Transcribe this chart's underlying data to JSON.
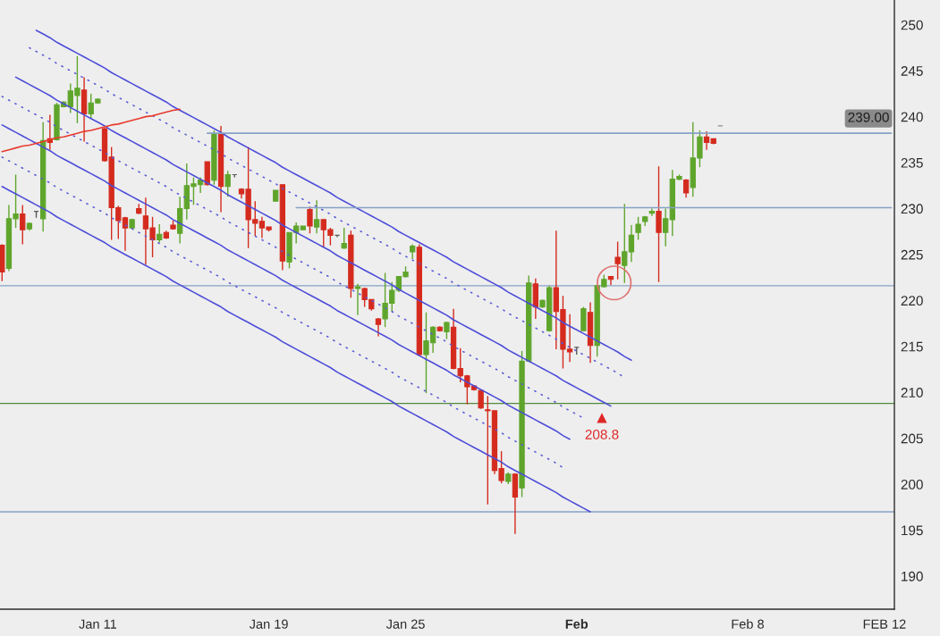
{
  "chart_data": {
    "type": "candlestick",
    "categories": [
      null,
      null,
      null,
      null,
      null,
      null,
      null,
      null,
      null,
      null,
      null,
      null,
      null,
      null,
      "Jan 11",
      null,
      null,
      null,
      null,
      null,
      null,
      null,
      null,
      null,
      null,
      null,
      null,
      null,
      null,
      null,
      null,
      null,
      null,
      null,
      null,
      null,
      null,
      null,
      null,
      "Jan 19",
      null,
      null,
      null,
      null,
      null,
      null,
      null,
      null,
      null,
      null,
      null,
      null,
      null,
      null,
      null,
      null,
      null,
      null,
      null,
      "Jan 25",
      null,
      null,
      null,
      null,
      null,
      null,
      null,
      null,
      null,
      null,
      null,
      null,
      null,
      null,
      null,
      null,
      null,
      null,
      null,
      null,
      null,
      null,
      null,
      null,
      "Feb",
      null,
      null,
      null,
      null,
      null,
      null,
      null,
      null,
      null,
      null,
      null,
      null,
      null,
      null,
      null,
      null,
      null,
      null,
      null,
      null,
      null,
      null,
      null,
      null,
      "Feb 8",
      null,
      null,
      null,
      null,
      null,
      null,
      null,
      null,
      null,
      null,
      null,
      null,
      null,
      null,
      null,
      null,
      null,
      null,
      null,
      "FEB 12",
      null
    ],
    "ohlc": [
      [
        226.0,
        226.1,
        222.1,
        223.1
      ],
      [
        223.5,
        230.4,
        223.2,
        228.9
      ],
      [
        228.9,
        233.7,
        227.9,
        229.4
      ],
      [
        229.4,
        230.4,
        226.1,
        227.7
      ],
      [
        227.8,
        228.5,
        227.6,
        228.4
      ],
      [
        229.7,
        229.7,
        229.0,
        229.7
      ],
      [
        228.9,
        239.4,
        227.5,
        237.4
      ],
      [
        237.6,
        240.2,
        236.4,
        237.2
      ],
      [
        237.5,
        241.5,
        237.4,
        241.3
      ],
      [
        241.1,
        241.7,
        241.0,
        241.6
      ],
      [
        241.1,
        243.6,
        240.4,
        242.8
      ],
      [
        242.3,
        246.6,
        239.3,
        243.1
      ],
      [
        242.9,
        244.3,
        237.3,
        240.3
      ],
      [
        240.3,
        242.5,
        239.8,
        241.5
      ],
      [
        241.5,
        242.0,
        241.4,
        241.9
      ],
      [
        238.7,
        238.8,
        235.1,
        235.2
      ],
      [
        235.6,
        236.7,
        226.6,
        230.1
      ],
      [
        230.1,
        230.3,
        226.7,
        228.7
      ],
      [
        229.0,
        229.1,
        225.4,
        227.9
      ],
      [
        227.9,
        228.9,
        227.8,
        228.8
      ],
      [
        230.0,
        230.5,
        229.4,
        229.5
      ],
      [
        229.2,
        231.2,
        223.9,
        227.8
      ],
      [
        227.9,
        229.1,
        224.7,
        226.6
      ],
      [
        226.6,
        228.3,
        226.3,
        227.2
      ],
      [
        227.4,
        227.6,
        226.7,
        226.8
      ],
      [
        228.2,
        228.7,
        227.7,
        227.8
      ],
      [
        227.3,
        231.3,
        226.2,
        230.0
      ],
      [
        230.0,
        234.9,
        228.8,
        232.5
      ],
      [
        232.4,
        233.4,
        230.4,
        232.7
      ],
      [
        232.6,
        233.4,
        231.7,
        233.1
      ],
      [
        235.1,
        235.1,
        232.5,
        232.6
      ],
      [
        233.1,
        238.5,
        232.6,
        238.1
      ],
      [
        238.1,
        239.0,
        229.6,
        232.4
      ],
      [
        232.4,
        234.1,
        231.3,
        233.7
      ],
      [
        233.7,
        233.7,
        233.4,
        233.7
      ],
      [
        232.1,
        232.2,
        231.1,
        231.6
      ],
      [
        232.1,
        236.7,
        225.7,
        228.8
      ],
      [
        228.8,
        230.8,
        227.0,
        228.4
      ],
      [
        228.6,
        229.1,
        226.8,
        227.9
      ],
      [
        228.0,
        228.0,
        227.5,
        227.7
      ],
      [
        230.8,
        232.0,
        230.8,
        232.0
      ],
      [
        232.6,
        232.6,
        223.3,
        224.3
      ],
      [
        224.2,
        227.4,
        223.5,
        227.4
      ],
      [
        227.4,
        228.5,
        226.2,
        228.1
      ],
      [
        227.7,
        228.1,
        227.7,
        228.1
      ],
      [
        229.9,
        230.2,
        227.3,
        228.1
      ],
      [
        228.0,
        230.9,
        227.3,
        228.8
      ],
      [
        228.8,
        228.8,
        225.8,
        227.7
      ],
      [
        227.7,
        227.9,
        226.0,
        227.1
      ],
      [
        227.1,
        227.1,
        226.9,
        227.1
      ],
      [
        225.7,
        227.9,
        225.6,
        226.2
      ],
      [
        227.1,
        227.6,
        220.3,
        221.3
      ],
      [
        221.3,
        221.8,
        218.4,
        221.5
      ],
      [
        221.3,
        221.4,
        219.3,
        220.1
      ],
      [
        220.1,
        220.1,
        218.9,
        219.1
      ],
      [
        218.0,
        218.1,
        216.1,
        217.4
      ],
      [
        218.0,
        223.0,
        217.1,
        219.7
      ],
      [
        219.7,
        222.0,
        218.8,
        221.1
      ],
      [
        221.1,
        222.6,
        220.9,
        222.6
      ],
      [
        222.6,
        223.7,
        222.5,
        223.1
      ],
      [
        225.3,
        226.1,
        224.5,
        225.9
      ],
      [
        225.8,
        226.1,
        213.9,
        214.1
      ],
      [
        214.1,
        218.7,
        209.9,
        215.6
      ],
      [
        215.4,
        217.2,
        214.3,
        217.1
      ],
      [
        217.1,
        217.2,
        216.6,
        216.7
      ],
      [
        216.6,
        217.7,
        215.8,
        217.6
      ],
      [
        217.1,
        219.1,
        212.5,
        212.6
      ],
      [
        212.6,
        214.8,
        211.1,
        211.8
      ],
      [
        211.8,
        211.9,
        208.7,
        210.6
      ],
      [
        210.7,
        210.8,
        210.2,
        210.3
      ],
      [
        210.2,
        210.3,
        208.2,
        208.3
      ],
      [
        208.1,
        209.6,
        197.8,
        208.0
      ],
      [
        208.0,
        208.0,
        201.1,
        201.5
      ],
      [
        201.7,
        203.6,
        200.1,
        200.4
      ],
      [
        200.3,
        201.3,
        200.0,
        201.1
      ],
      [
        201.1,
        201.2,
        194.6,
        198.6
      ],
      [
        199.6,
        214.5,
        198.6,
        213.4
      ],
      [
        213.4,
        222.7,
        213.3,
        221.9
      ],
      [
        221.8,
        222.4,
        218.0,
        219.3
      ],
      [
        219.3,
        220.1,
        219.2,
        220.0
      ],
      [
        216.7,
        221.6,
        216.6,
        221.4
      ],
      [
        221.4,
        227.6,
        214.7,
        218.8
      ],
      [
        219.0,
        220.5,
        212.6,
        214.7
      ],
      [
        214.7,
        218.5,
        213.3,
        214.4
      ],
      [
        214.9,
        214.9,
        214.1,
        214.9
      ],
      [
        216.7,
        219.3,
        216.7,
        219.1
      ],
      [
        218.7,
        219.8,
        213.2,
        215.1
      ],
      [
        215.1,
        221.7,
        213.9,
        221.6
      ],
      [
        221.5,
        222.8,
        221.4,
        222.3
      ],
      [
        222.6,
        222.6,
        221.7,
        222.3
      ],
      [
        224.7,
        226.4,
        222.3,
        224.0
      ],
      [
        223.8,
        230.5,
        221.9,
        225.3
      ],
      [
        225.3,
        228.2,
        224.2,
        227.1
      ],
      [
        227.4,
        229.1,
        226.6,
        228.3
      ],
      [
        228.6,
        229.2,
        228.1,
        229.1
      ],
      [
        229.5,
        230.0,
        229.2,
        229.7
      ],
      [
        229.7,
        234.6,
        222.0,
        227.4
      ],
      [
        227.4,
        230.0,
        225.9,
        228.9
      ],
      [
        228.8,
        234.2,
        227.0,
        233.2
      ],
      [
        233.2,
        233.7,
        233.1,
        233.5
      ],
      [
        233.1,
        233.2,
        231.2,
        231.7
      ],
      [
        232.3,
        239.4,
        231.3,
        235.5
      ],
      [
        235.5,
        238.5,
        234.5,
        237.8
      ],
      [
        237.8,
        238.4,
        236.4,
        237.2
      ],
      [
        237.6,
        237.6,
        237.0,
        237.1
      ],
      [
        239.0,
        239.0,
        239.0,
        239.0
      ],
      null,
      null,
      null,
      null,
      null,
      null,
      null,
      null,
      null,
      null,
      null,
      null,
      null,
      null,
      null,
      null,
      null,
      null,
      null,
      null,
      null,
      null,
      null,
      null,
      null
    ],
    "colors": [
      "#d42b1e",
      "#5fa52c",
      "#5fa52c",
      "#d42b1e",
      "#5fa52c",
      "#5a5a5a",
      "#5fa52c",
      "#d42b1e",
      "#5fa52c",
      "#5fa52c",
      "#5fa52c",
      "#5fa52c",
      "#d42b1e",
      "#5fa52c",
      "#5fa52c",
      "#d42b1e",
      "#d42b1e",
      "#d42b1e",
      "#d42b1e",
      "#5fa52c",
      "#d42b1e",
      "#d42b1e",
      "#d42b1e",
      "#5fa52c",
      "#d42b1e",
      "#d42b1e",
      "#5fa52c",
      "#5fa52c",
      "#5fa52c",
      "#5fa52c",
      "#d42b1e",
      "#5fa52c",
      "#d42b1e",
      "#5fa52c",
      "#5a5a5a",
      "#d42b1e",
      "#d42b1e",
      "#d42b1e",
      "#d42b1e",
      "#d42b1e",
      "#5fa52c",
      "#d42b1e",
      "#5fa52c",
      "#5fa52c",
      "#5fa52c",
      "#d42b1e",
      "#5fa52c",
      "#d42b1e",
      "#d42b1e",
      "#5a5a5a",
      "#5fa52c",
      "#d42b1e",
      "#5fa52c",
      "#d42b1e",
      "#d42b1e",
      "#d42b1e",
      "#5fa52c",
      "#5fa52c",
      "#5fa52c",
      "#5fa52c",
      "#5fa52c",
      "#d42b1e",
      "#5fa52c",
      "#5fa52c",
      "#d42b1e",
      "#5fa52c",
      "#d42b1e",
      "#d42b1e",
      "#d42b1e",
      "#d42b1e",
      "#d42b1e",
      "#d42b1e",
      "#d42b1e",
      "#d42b1e",
      "#5fa52c",
      "#d42b1e",
      "#5fa52c",
      "#5fa52c",
      "#d42b1e",
      "#5fa52c",
      "#5fa52c",
      "#d42b1e",
      "#d42b1e",
      "#d42b1e",
      "#5a5a5a",
      "#5fa52c",
      "#d42b1e",
      "#5fa52c",
      "#5fa52c",
      "#d42b1e",
      "#d42b1e",
      "#5fa52c",
      "#5fa52c",
      "#5fa52c",
      "#5fa52c",
      "#5fa52c",
      "#d42b1e",
      "#5fa52c",
      "#5fa52c",
      "#5fa52c",
      "#d42b1e",
      "#5fa52c",
      "#5fa52c",
      "#d42b1e",
      "#d42b1e",
      "#8c8c8c",
      null,
      null,
      null,
      null,
      null,
      null,
      null,
      null,
      null,
      null,
      null,
      null,
      null,
      null,
      null,
      null,
      null,
      null,
      null,
      null,
      null,
      null,
      null,
      null,
      null
    ],
    "ylim": [
      186.4,
      252.7
    ],
    "yticks": [
      190,
      195,
      200,
      205,
      210,
      215,
      220,
      225,
      230,
      235,
      240,
      245,
      250
    ],
    "series": [
      {
        "type": "line",
        "color": "#4d4dd9",
        "line_style": "solid",
        "values": [
          null,
          null,
          null,
          null,
          null,
          249.4,
          249.0,
          248.6,
          248.1,
          247.7,
          247.3,
          246.9,
          246.5,
          246.1,
          245.7,
          245.3,
          244.8,
          244.4,
          244.0,
          243.6,
          243.2,
          242.8,
          242.4,
          242.0,
          241.6,
          241.1,
          240.7,
          240.3,
          239.9,
          239.5,
          239.1,
          238.7,
          238.3,
          237.8,
          237.4,
          237.0,
          236.6,
          236.2,
          235.8,
          235.4,
          235.0,
          234.5,
          234.1,
          233.7,
          233.3,
          232.9,
          232.5,
          232.1,
          231.7,
          231.2,
          230.8,
          230.4,
          230.0,
          229.6,
          229.2,
          228.8,
          228.4,
          228.0,
          227.5,
          227.1,
          226.7,
          226.3,
          225.9,
          225.5,
          225.1,
          224.7,
          224.2,
          223.8,
          223.4,
          223.0,
          222.6,
          222.2,
          221.8,
          221.4,
          220.9,
          220.5,
          220.1,
          219.7,
          219.3,
          218.9,
          218.5,
          218.1,
          217.6,
          217.2,
          216.8,
          216.4,
          216.0,
          215.6,
          215.2,
          214.8,
          214.4,
          213.9,
          213.5,
          null,
          null,
          null,
          null,
          null,
          null,
          null,
          null,
          null,
          null,
          null,
          null,
          null,
          null,
          null,
          null,
          null,
          null,
          null,
          null,
          null,
          null,
          null,
          null,
          null,
          null,
          null,
          null,
          null,
          null,
          null,
          null,
          null,
          null,
          null,
          null,
          null,
          null
        ]
      },
      {
        "type": "line",
        "color": "#5a5ad6",
        "line_style": "dotted",
        "values": [
          null,
          null,
          null,
          null,
          247.5,
          247.1,
          246.7,
          246.3,
          245.8,
          245.4,
          245.0,
          244.6,
          244.2,
          243.8,
          243.4,
          243.0,
          242.5,
          242.1,
          241.7,
          241.3,
          240.9,
          240.5,
          240.1,
          239.7,
          239.3,
          238.8,
          238.4,
          238.0,
          237.6,
          237.2,
          236.8,
          236.4,
          236.0,
          235.5,
          235.1,
          234.7,
          234.3,
          233.9,
          233.5,
          233.1,
          232.7,
          232.2,
          231.8,
          231.4,
          231.0,
          230.6,
          230.2,
          229.8,
          229.4,
          228.9,
          228.5,
          228.1,
          227.7,
          227.3,
          226.9,
          226.5,
          226.1,
          225.7,
          225.2,
          224.8,
          224.4,
          224.0,
          223.6,
          223.2,
          222.8,
          222.4,
          221.9,
          221.5,
          221.1,
          220.7,
          220.3,
          219.9,
          219.5,
          219.1,
          218.6,
          218.2,
          217.8,
          217.4,
          217.0,
          216.6,
          216.2,
          215.8,
          215.3,
          214.9,
          214.5,
          214.1,
          213.7,
          213.3,
          212.9,
          212.5,
          212.1,
          211.6,
          null,
          null,
          null,
          null,
          null,
          null,
          null,
          null,
          null,
          null,
          null,
          null,
          null,
          null,
          null,
          null,
          null,
          null,
          null,
          null,
          null,
          null,
          null,
          null,
          null,
          null,
          null,
          null,
          null,
          null,
          null,
          null,
          null,
          null,
          null,
          null,
          null,
          null,
          null
        ]
      },
      {
        "type": "line",
        "color": "#4d4dd9",
        "line_style": "solid",
        "values": [
          null,
          null,
          244.3,
          243.9,
          243.5,
          243.1,
          242.7,
          242.3,
          241.8,
          241.4,
          241.0,
          240.6,
          240.2,
          239.8,
          239.4,
          239.0,
          238.5,
          238.1,
          237.7,
          237.3,
          236.9,
          236.5,
          236.1,
          235.7,
          235.3,
          234.8,
          234.4,
          234.0,
          233.6,
          233.2,
          232.8,
          232.4,
          232.0,
          231.5,
          231.1,
          230.7,
          230.3,
          229.9,
          229.5,
          229.1,
          228.7,
          228.2,
          227.8,
          227.4,
          227.0,
          226.6,
          226.2,
          225.8,
          225.4,
          224.9,
          224.5,
          224.1,
          223.7,
          223.3,
          222.9,
          222.5,
          222.1,
          221.7,
          221.2,
          220.8,
          220.4,
          220.0,
          219.6,
          219.2,
          218.8,
          218.4,
          217.9,
          217.5,
          217.1,
          216.7,
          216.3,
          215.9,
          215.5,
          215.1,
          214.6,
          214.2,
          213.8,
          213.4,
          213.0,
          212.6,
          212.2,
          211.8,
          211.3,
          210.9,
          210.5,
          210.1,
          209.7,
          209.3,
          208.9,
          208.5,
          null,
          null,
          null,
          null,
          null,
          null,
          null,
          null,
          null,
          null,
          null,
          null,
          null,
          null,
          null,
          null,
          null,
          null,
          null,
          null,
          null,
          null,
          null,
          null,
          null,
          null,
          null,
          null,
          null,
          null,
          null,
          null,
          null,
          null,
          null,
          null,
          null,
          null,
          null,
          null,
          null
        ]
      },
      {
        "type": "line",
        "color": "#5a5ad6",
        "line_style": "dotted",
        "values": [
          242.2,
          241.8,
          241.4,
          241.0,
          240.6,
          240.2,
          239.8,
          239.4,
          238.9,
          238.5,
          238.1,
          237.7,
          237.3,
          236.9,
          236.5,
          236.1,
          235.6,
          235.2,
          234.8,
          234.4,
          234.0,
          233.6,
          233.2,
          232.8,
          232.4,
          231.9,
          231.5,
          231.1,
          230.7,
          230.3,
          229.9,
          229.5,
          229.1,
          228.6,
          228.2,
          227.8,
          227.4,
          227.0,
          226.6,
          226.2,
          225.8,
          225.3,
          224.9,
          224.5,
          224.1,
          223.7,
          223.3,
          222.9,
          222.5,
          222.0,
          221.6,
          221.2,
          220.8,
          220.4,
          220.0,
          219.6,
          219.2,
          218.8,
          218.3,
          217.9,
          217.5,
          217.1,
          216.7,
          216.3,
          215.9,
          215.5,
          215.0,
          214.6,
          214.2,
          213.8,
          213.4,
          213.0,
          212.6,
          212.2,
          211.7,
          211.3,
          210.9,
          210.5,
          210.1,
          209.7,
          209.3,
          208.9,
          208.4,
          208.0,
          207.6,
          207.2,
          null,
          null,
          null,
          null,
          null,
          null,
          null,
          null,
          null,
          null,
          null,
          null,
          null,
          null,
          null,
          null,
          null,
          null,
          null,
          null,
          null,
          null,
          null,
          null,
          null,
          null,
          null,
          null,
          null,
          null,
          null,
          null,
          null,
          null,
          null,
          null,
          null,
          null,
          null,
          null,
          null,
          null,
          null,
          null,
          null
        ]
      },
      {
        "type": "line",
        "color": "#4d4dd9",
        "line_style": "solid",
        "values": [
          239.1,
          238.7,
          238.3,
          237.9,
          237.5,
          237.1,
          236.7,
          236.3,
          235.8,
          235.4,
          235.0,
          234.6,
          234.2,
          233.8,
          233.4,
          233.0,
          232.5,
          232.1,
          231.7,
          231.3,
          230.9,
          230.5,
          230.1,
          229.7,
          229.3,
          228.8,
          228.4,
          228.0,
          227.6,
          227.2,
          226.8,
          226.4,
          226.0,
          225.5,
          225.1,
          224.7,
          224.3,
          223.9,
          223.5,
          223.1,
          222.7,
          222.2,
          221.8,
          221.4,
          221.0,
          220.6,
          220.2,
          219.8,
          219.4,
          218.9,
          218.5,
          218.1,
          217.7,
          217.3,
          216.9,
          216.5,
          216.1,
          215.7,
          215.2,
          214.8,
          214.4,
          214.0,
          213.6,
          213.2,
          212.8,
          212.4,
          211.9,
          211.5,
          211.1,
          210.7,
          210.3,
          209.9,
          209.5,
          209.1,
          208.6,
          208.2,
          207.8,
          207.4,
          207.0,
          206.6,
          206.2,
          205.8,
          205.3,
          204.9,
          null,
          null,
          null,
          null,
          null,
          null,
          null,
          null,
          null,
          null,
          null,
          null,
          null,
          null,
          null,
          null,
          null,
          null,
          null,
          null,
          null,
          null,
          null,
          null,
          null,
          null,
          null,
          null,
          null,
          null,
          null,
          null,
          null,
          null,
          null,
          null,
          null,
          null,
          null,
          null,
          null,
          null,
          null,
          null,
          null,
          null,
          null
        ]
      },
      {
        "type": "line",
        "color": "#5a5ad6",
        "line_style": "dotted",
        "values": [
          235.6,
          235.2,
          234.8,
          234.4,
          234.0,
          233.6,
          233.2,
          232.8,
          232.3,
          231.9,
          231.5,
          231.1,
          230.7,
          230.3,
          229.9,
          229.5,
          229.0,
          228.6,
          228.2,
          227.8,
          227.4,
          227.0,
          226.6,
          226.2,
          225.8,
          225.3,
          224.9,
          224.5,
          224.1,
          223.7,
          223.3,
          222.9,
          222.5,
          222.0,
          221.6,
          221.2,
          220.8,
          220.4,
          220.0,
          219.6,
          219.2,
          218.7,
          218.3,
          217.9,
          217.5,
          217.1,
          216.7,
          216.3,
          215.9,
          215.4,
          215.0,
          214.6,
          214.2,
          213.8,
          213.4,
          213.0,
          212.6,
          212.2,
          211.7,
          211.3,
          210.9,
          210.5,
          210.1,
          209.7,
          209.3,
          208.9,
          208.4,
          208.0,
          207.6,
          207.2,
          206.8,
          206.4,
          206.0,
          205.6,
          205.1,
          204.7,
          204.3,
          203.9,
          203.5,
          203.1,
          202.7,
          202.3,
          201.8,
          null,
          null,
          null,
          null,
          null,
          null,
          null,
          null,
          null,
          null,
          null,
          null,
          null,
          null,
          null,
          null,
          null,
          null,
          null,
          null,
          null,
          null,
          null,
          null,
          null,
          null,
          null,
          null,
          null,
          null,
          null,
          null,
          null,
          null,
          null,
          null,
          null,
          null,
          null,
          null,
          null,
          null,
          null,
          null,
          null,
          null,
          null,
          null
        ]
      },
      {
        "type": "line",
        "color": "#4d4dd9",
        "line_style": "solid",
        "values": [
          232.4,
          232.0,
          231.6,
          231.2,
          230.8,
          230.4,
          230.0,
          229.6,
          229.1,
          228.7,
          228.3,
          227.9,
          227.5,
          227.1,
          226.7,
          226.3,
          225.8,
          225.4,
          225.0,
          224.6,
          224.2,
          223.8,
          223.4,
          223.0,
          222.6,
          222.1,
          221.7,
          221.3,
          220.9,
          220.5,
          220.1,
          219.7,
          219.3,
          218.8,
          218.4,
          218.0,
          217.6,
          217.2,
          216.8,
          216.4,
          216.0,
          215.5,
          215.1,
          214.7,
          214.3,
          213.9,
          213.5,
          213.1,
          212.7,
          212.2,
          211.8,
          211.4,
          211.0,
          210.6,
          210.2,
          209.8,
          209.4,
          209.0,
          208.5,
          208.1,
          207.7,
          207.3,
          206.9,
          206.5,
          206.1,
          205.7,
          205.2,
          204.8,
          204.4,
          204.0,
          203.6,
          203.2,
          202.8,
          202.4,
          201.9,
          201.5,
          201.1,
          200.7,
          200.3,
          199.9,
          199.5,
          199.1,
          198.6,
          198.2,
          197.8,
          197.4,
          197.0,
          null,
          null,
          null,
          null,
          null,
          null,
          null,
          null,
          null,
          null,
          null,
          null,
          null,
          null,
          null,
          null,
          null,
          null,
          null,
          null,
          null,
          null,
          null,
          null,
          null,
          null,
          null,
          null,
          null,
          null,
          null,
          null,
          null,
          null,
          null,
          null,
          null,
          null,
          null,
          null,
          null,
          null,
          null,
          null
        ]
      },
      {
        "type": "line",
        "color": "#e83a2e",
        "line_style": "solid",
        "values": [
          236.2,
          236.4,
          236.6,
          236.8,
          236.9,
          237.1,
          237.3,
          237.5,
          237.7,
          237.8,
          238.0,
          238.2,
          238.4,
          238.5,
          238.7,
          238.9,
          239.1,
          239.2,
          239.4,
          239.6,
          239.8,
          240.0,
          240.1,
          240.3,
          240.5,
          240.7,
          240.8,
          null,
          null,
          null,
          null,
          null,
          null,
          null,
          null,
          null,
          null,
          null,
          null,
          null,
          null,
          null,
          null,
          null,
          null,
          null,
          null,
          null,
          null,
          null,
          null,
          null,
          null,
          null,
          null,
          null,
          null,
          null,
          null,
          null,
          null,
          null,
          null,
          null,
          null,
          null,
          null,
          null,
          null,
          null,
          null,
          null,
          null,
          null,
          null,
          null,
          null,
          null,
          null,
          null,
          null,
          null,
          null,
          null,
          null,
          null,
          null,
          null,
          null,
          null,
          null,
          null,
          null,
          null,
          null,
          null,
          null,
          null,
          null,
          null,
          null,
          null,
          null,
          null,
          null,
          null,
          null,
          null,
          null,
          null,
          null,
          null,
          null,
          null,
          null,
          null,
          null,
          null,
          null,
          null,
          null,
          null,
          null,
          null,
          null,
          null,
          null,
          null,
          null,
          null,
          null
        ]
      },
      {
        "type": "line",
        "color": "#86a2c6",
        "line_style": "solid",
        "values": [
          null,
          null,
          null,
          null,
          null,
          null,
          null,
          null,
          null,
          null,
          null,
          null,
          null,
          null,
          null,
          null,
          null,
          null,
          null,
          null,
          null,
          null,
          null,
          null,
          null,
          null,
          null,
          null,
          null,
          null,
          238.2,
          238.2,
          238.2,
          238.2,
          238.2,
          238.2,
          238.2,
          238.2,
          238.2,
          238.2,
          238.2,
          238.2,
          238.2,
          238.2,
          238.2,
          238.2,
          238.2,
          238.2,
          238.2,
          238.2,
          238.2,
          238.2,
          238.2,
          238.2,
          238.2,
          238.2,
          238.2,
          238.2,
          238.2,
          238.2,
          238.2,
          238.2,
          238.2,
          238.2,
          238.2,
          238.2,
          238.2,
          238.2,
          238.2,
          238.2,
          238.2,
          238.2,
          238.2,
          238.2,
          238.2,
          238.2,
          238.2,
          238.2,
          238.2,
          238.2,
          238.2,
          238.2,
          238.2,
          238.2,
          238.2,
          238.2,
          238.2,
          238.2,
          238.2,
          238.2,
          238.2,
          238.2,
          238.2,
          238.2,
          238.2,
          238.2,
          238.2,
          238.2,
          238.2,
          238.2,
          238.2,
          238.2,
          238.2,
          238.2,
          238.2,
          238.2,
          238.2,
          238.2,
          238.2,
          238.2,
          238.2,
          238.2,
          238.2,
          238.2,
          238.2,
          238.2,
          238.2,
          238.2,
          238.2,
          238.2,
          238.2,
          238.2,
          238.2,
          238.2,
          238.2,
          238.2,
          238.2,
          238.2,
          238.2,
          238.2,
          238.2
        ]
      },
      {
        "type": "line",
        "color": "#86a2c6",
        "line_style": "solid",
        "values": [
          null,
          null,
          null,
          null,
          null,
          null,
          null,
          null,
          null,
          null,
          null,
          null,
          null,
          null,
          null,
          null,
          null,
          null,
          null,
          null,
          null,
          null,
          null,
          null,
          null,
          null,
          null,
          null,
          null,
          null,
          null,
          null,
          null,
          null,
          null,
          null,
          null,
          null,
          null,
          null,
          null,
          null,
          null,
          230.1,
          230.1,
          230.1,
          230.1,
          230.1,
          230.1,
          230.1,
          230.1,
          230.1,
          230.1,
          230.1,
          230.1,
          230.1,
          230.1,
          230.1,
          230.1,
          230.1,
          230.1,
          230.1,
          230.1,
          230.1,
          230.1,
          230.1,
          230.1,
          230.1,
          230.1,
          230.1,
          230.1,
          230.1,
          230.1,
          230.1,
          230.1,
          230.1,
          230.1,
          230.1,
          230.1,
          230.1,
          230.1,
          230.1,
          230.1,
          230.1,
          230.1,
          230.1,
          230.1,
          230.1,
          230.1,
          230.1,
          230.1,
          230.1,
          230.1,
          230.1,
          230.1,
          230.1,
          230.1,
          230.1,
          230.1,
          230.1,
          230.1,
          230.1,
          230.1,
          230.1,
          230.1,
          230.1,
          230.1,
          230.1,
          230.1,
          230.1,
          230.1,
          230.1,
          230.1,
          230.1,
          230.1,
          230.1,
          230.1,
          230.1,
          230.1,
          230.1,
          230.1,
          230.1,
          230.1,
          230.1,
          230.1,
          230.1,
          230.1,
          230.1,
          230.1,
          230.1,
          230.1
        ]
      }
    ],
    "ref_lines": [
      {
        "axis": "y",
        "value": 221.6,
        "color": "#86a2c6"
      },
      {
        "axis": "y",
        "value": 197.0,
        "color": "#86a2c6"
      },
      {
        "axis": "y",
        "value": 208.8,
        "color": "#4f8a3c"
      }
    ],
    "annotations": [
      {
        "text": "208.8",
        "y": 208.8
      },
      "239.00"
    ]
  }
}
